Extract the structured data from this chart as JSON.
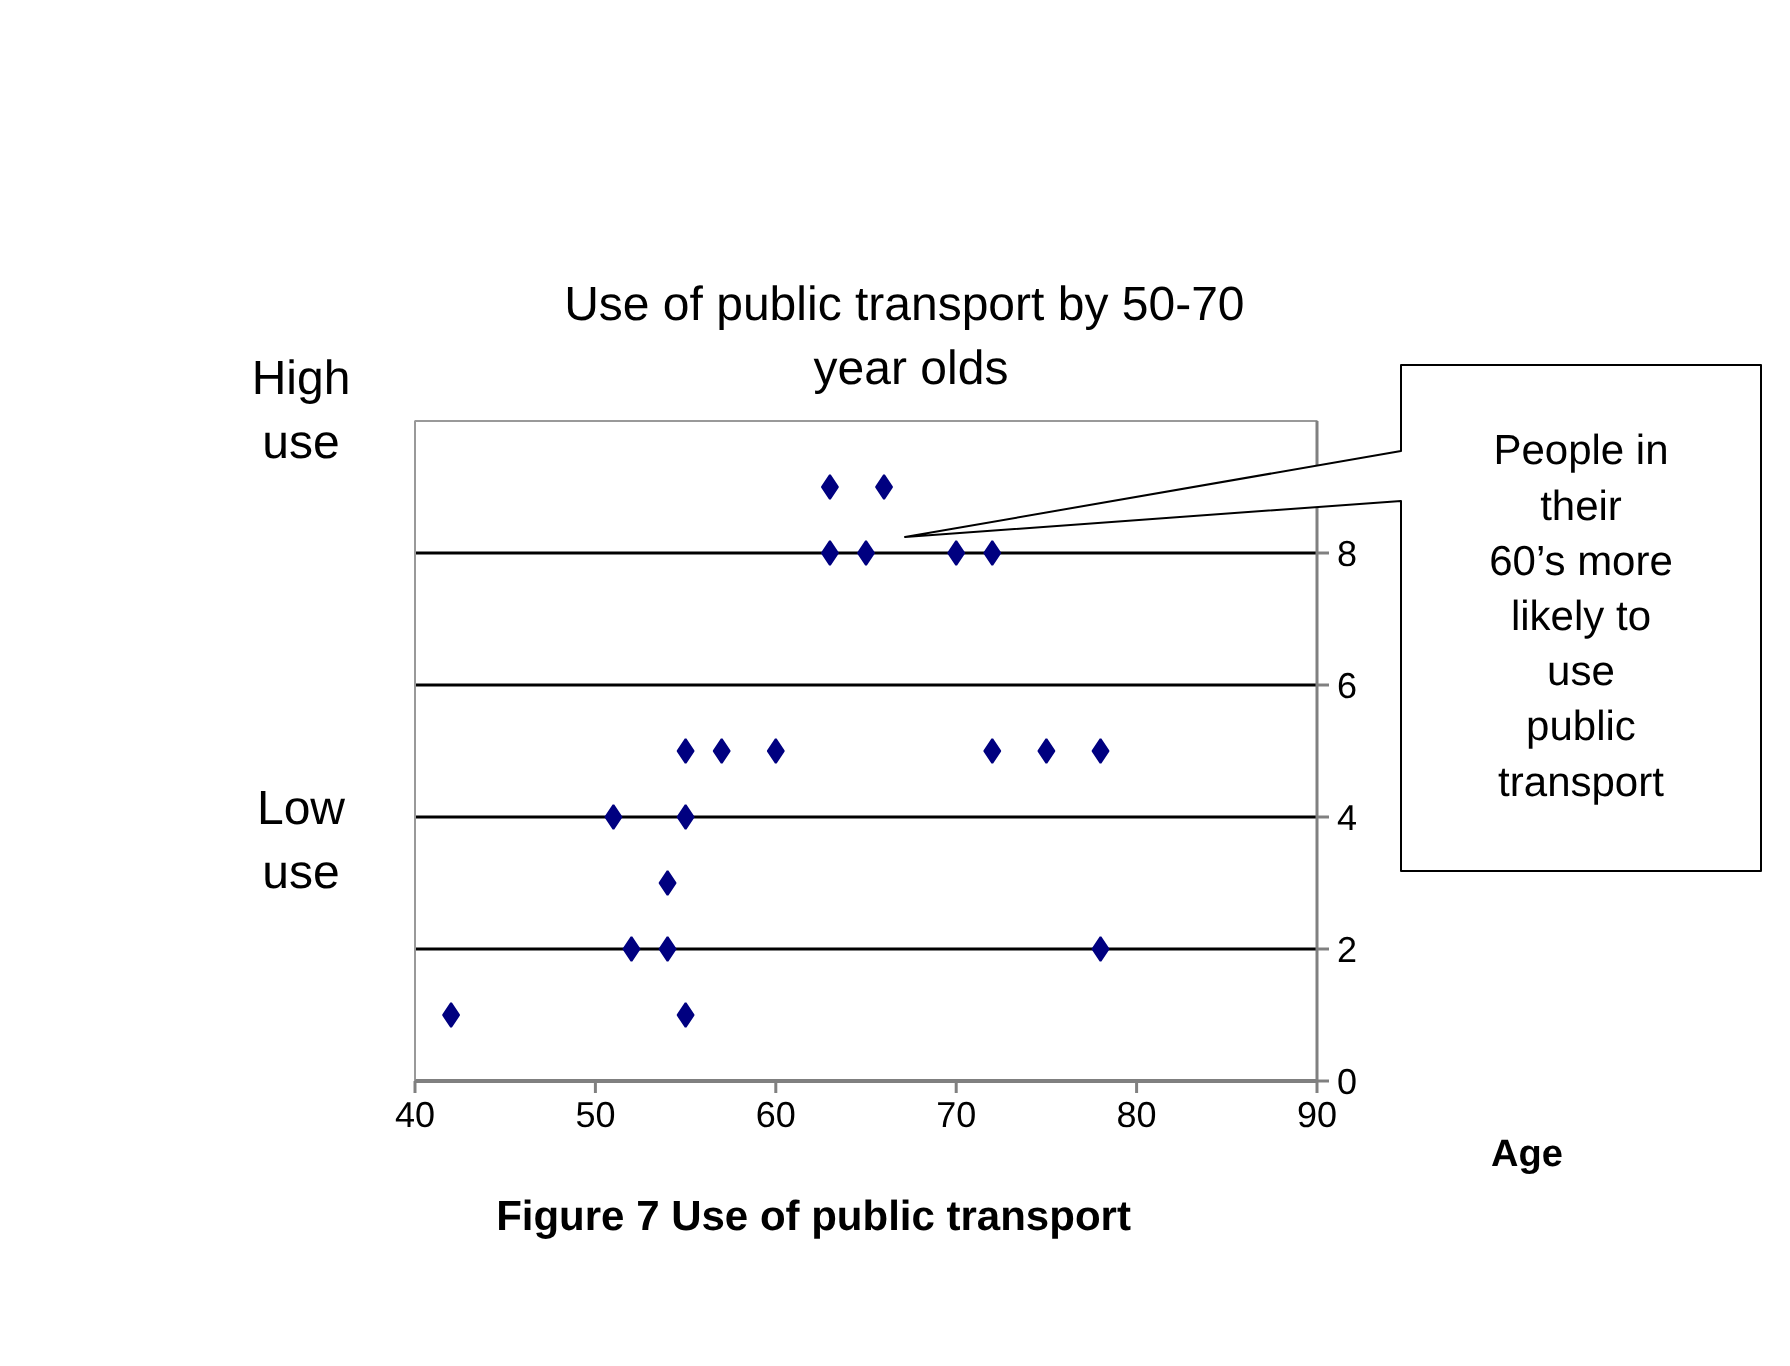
{
  "chart_data": {
    "type": "scatter",
    "title": "Use of public transport by  50-70 year olds",
    "xlabel": "Age",
    "x": [
      42,
      52,
      54,
      78,
      54,
      51,
      55,
      55,
      57,
      60,
      72,
      75,
      78,
      55,
      63,
      65,
      70,
      72,
      63,
      66
    ],
    "values": [
      1,
      2,
      2,
      2,
      3,
      4,
      4,
      5,
      5,
      5,
      5,
      5,
      5,
      1,
      8,
      8,
      8,
      8,
      9,
      9
    ],
    "color": "#000080",
    "marker": "diamond",
    "xlim": [
      40,
      90
    ],
    "xticks": [
      40,
      50,
      60,
      70,
      80,
      90
    ],
    "ylim": [
      0,
      10
    ],
    "yticks": [
      0,
      2,
      4,
      6,
      8
    ],
    "grid": "y",
    "annotations": [
      "High use",
      "Low use",
      "People in their 60’s more likely to use public transport",
      "Figure 7    Use of public transport"
    ]
  }
}
